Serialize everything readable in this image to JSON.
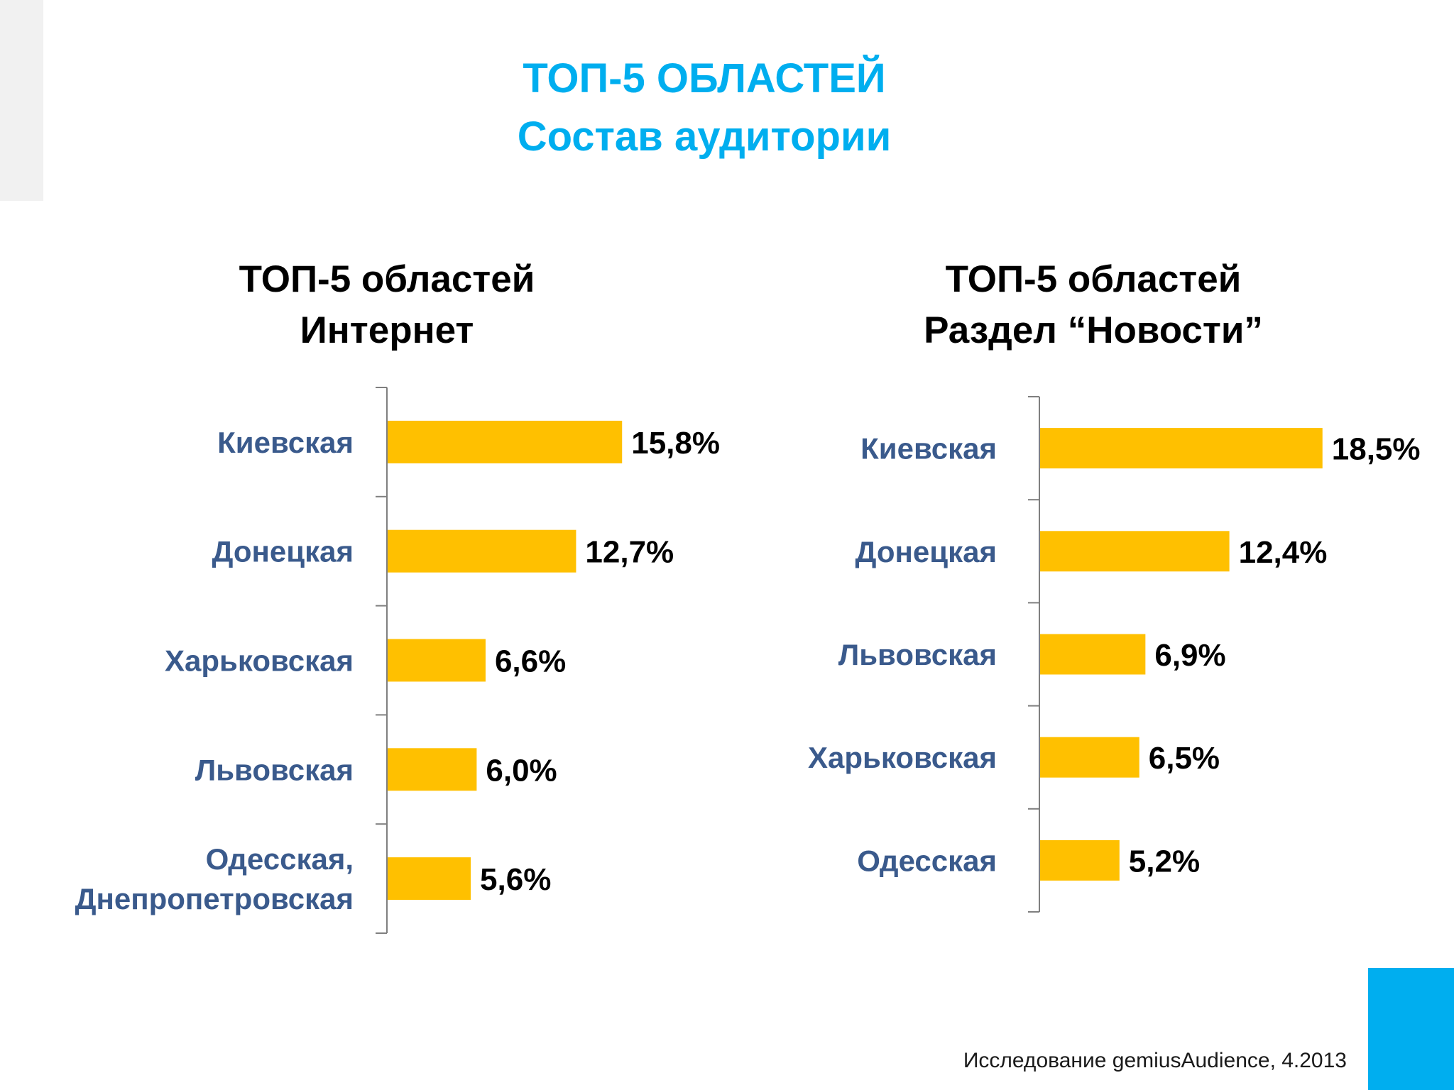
{
  "header": {
    "title_line1": "ТОП-5 ОБЛАСТЕЙ",
    "title_line2": "Состав аудитории"
  },
  "colors": {
    "title": "#00AEEF",
    "bar": "#FFC000",
    "category_label": "#3A5A8C",
    "value_label": "#000000",
    "accent": "#00AEEF"
  },
  "footer": "Исследование gemiusAudience, 4.2013",
  "chart_data": [
    {
      "type": "bar",
      "orientation": "horizontal",
      "title": "ТОП-5 областей",
      "subtitle": "Интернет",
      "categories": [
        "Киевская",
        "Донецкая",
        "Харьковская",
        "Львовская",
        "Одесская, Днепропетровская"
      ],
      "values": [
        15.8,
        12.7,
        6.6,
        6.0,
        5.6
      ],
      "value_labels": [
        "15,8%",
        "12,7%",
        "6,6%",
        "6,0%",
        "5,6%"
      ],
      "xlim": [
        0,
        25
      ],
      "grid": false,
      "legend": "none"
    },
    {
      "type": "bar",
      "orientation": "horizontal",
      "title": "ТОП-5 областей",
      "subtitle": "Раздел “Новости”",
      "categories": [
        "Киевская",
        "Донецкая",
        "Львовская",
        "Харьковская",
        "Одесская"
      ],
      "values": [
        18.5,
        12.4,
        6.9,
        6.5,
        5.2
      ],
      "value_labels": [
        "18,5%",
        "12,4%",
        "6,9%",
        "6,5%",
        "5,2%"
      ],
      "xlim": [
        0,
        25
      ],
      "grid": false,
      "legend": "none"
    }
  ]
}
